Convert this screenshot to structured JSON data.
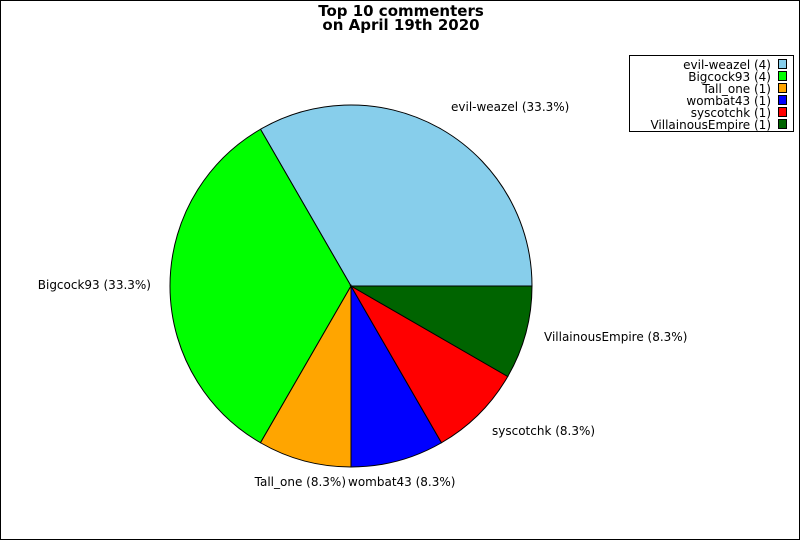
{
  "chart_data": {
    "type": "pie",
    "title": [
      "Top 10 commenters",
      "on April 19th 2020"
    ],
    "legend_position": "top-right",
    "slices": [
      {
        "name": "evil-weazel",
        "count": 4,
        "percent": 33.3,
        "color": "#87CEEB"
      },
      {
        "name": "Bigcock93",
        "count": 4,
        "percent": 33.3,
        "color": "#00FF00"
      },
      {
        "name": "Tall_one",
        "count": 1,
        "percent": 8.3,
        "color": "#FFA500"
      },
      {
        "name": "wombat43",
        "count": 1,
        "percent": 8.3,
        "color": "#0000FF"
      },
      {
        "name": "syscotchk",
        "count": 1,
        "percent": 8.3,
        "color": "#FF0000"
      },
      {
        "name": "VillainousEmpire",
        "count": 1,
        "percent": 8.3,
        "color": "#006400"
      }
    ]
  }
}
